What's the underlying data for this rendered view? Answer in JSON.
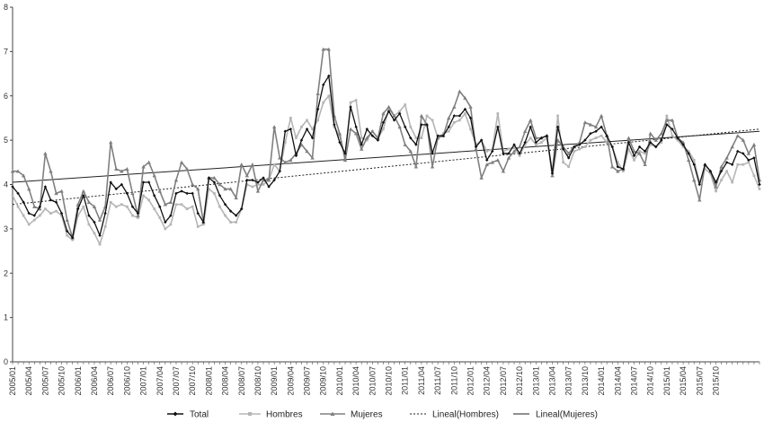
{
  "chart_data": {
    "type": "line",
    "title": "",
    "xlabel": "",
    "ylabel": "",
    "ylim": [
      0,
      8
    ],
    "yticks": [
      "0",
      "1",
      "2",
      "3",
      "4",
      "5",
      "6",
      "7",
      "8"
    ],
    "x_tick_labels": [
      "2005/01",
      "2005/04",
      "2005/07",
      "2005/10",
      "2006/01",
      "2006/04",
      "2006/07",
      "2006/10",
      "2007/01",
      "2007/04",
      "2007/07",
      "2007/10",
      "2008/01",
      "2008/04",
      "2008/07",
      "2008/10",
      "2009/01",
      "2009/04",
      "2009/07",
      "2009/10",
      "2010/01",
      "2010/04",
      "2010/07",
      "2010/10",
      "2011/01",
      "2011/04",
      "2011/07",
      "2011/10",
      "2012/01",
      "2012/04",
      "2012/07",
      "2012/10",
      "2013/01",
      "2013/04",
      "2013/07",
      "2013/10",
      "2014/01",
      "2014/04",
      "2014/07",
      "2014/10",
      "2015/01",
      "2015/04",
      "2015/07",
      "2015/10"
    ],
    "grid": false,
    "legend_position": "bottom",
    "series": [
      {
        "name": "Total",
        "color": "#111111",
        "marker": "diamond",
        "values": [
          3.95,
          3.8,
          3.6,
          3.35,
          3.3,
          3.5,
          3.95,
          3.65,
          3.6,
          3.35,
          2.95,
          2.8,
          3.45,
          3.75,
          3.3,
          3.15,
          2.85,
          3.35,
          4.05,
          3.9,
          4.0,
          3.8,
          3.5,
          3.35,
          4.05,
          4.05,
          3.75,
          3.5,
          3.15,
          3.3,
          3.8,
          3.85,
          3.8,
          3.8,
          3.35,
          3.15,
          4.15,
          4.05,
          3.75,
          3.55,
          3.4,
          3.3,
          3.45,
          4.1,
          4.1,
          4.05,
          4.15,
          3.95,
          4.1,
          4.3,
          5.2,
          5.25,
          4.65,
          5.0,
          5.25,
          5.05,
          5.7,
          6.25,
          6.45,
          5.35,
          4.95,
          4.7,
          5.75,
          5.3,
          4.9,
          5.25,
          5.1,
          5.0,
          5.4,
          5.65,
          5.45,
          5.6,
          5.3,
          5.05,
          4.9,
          5.35,
          5.35,
          4.7,
          5.1,
          5.1,
          5.3,
          5.55,
          5.55,
          5.7,
          5.5,
          4.85,
          5.0,
          4.55,
          4.75,
          5.3,
          4.7,
          4.7,
          4.9,
          4.7,
          4.95,
          5.3,
          4.95,
          5.05,
          5.1,
          4.25,
          5.3,
          4.8,
          4.6,
          4.85,
          4.9,
          5.0,
          5.15,
          5.2,
          5.3,
          5.1,
          4.85,
          4.4,
          4.35,
          4.95,
          4.65,
          4.85,
          4.75,
          4.95,
          4.85,
          5.0,
          5.35,
          5.25,
          5.05,
          4.9,
          4.7,
          4.45,
          4.0,
          4.45,
          4.3,
          4.05,
          4.3,
          4.5,
          4.45,
          4.75,
          4.7,
          4.55,
          4.6,
          4.0
        ]
      },
      {
        "name": "Hombres",
        "color": "#b5b5b5",
        "marker": "square",
        "values": [
          3.75,
          3.5,
          3.3,
          3.1,
          3.2,
          3.3,
          3.45,
          3.35,
          3.4,
          3.3,
          2.85,
          2.75,
          3.3,
          3.5,
          3.1,
          2.9,
          2.65,
          3.05,
          3.6,
          3.5,
          3.55,
          3.5,
          3.3,
          3.25,
          3.75,
          3.65,
          3.45,
          3.25,
          3.0,
          3.1,
          3.55,
          3.55,
          3.45,
          3.5,
          3.05,
          3.1,
          3.9,
          3.8,
          3.5,
          3.3,
          3.15,
          3.15,
          3.45,
          4.0,
          3.95,
          4.0,
          4.0,
          4.1,
          4.45,
          4.3,
          4.95,
          5.5,
          5.05,
          5.3,
          5.45,
          5.25,
          5.45,
          5.85,
          6.0,
          5.3,
          5.1,
          4.6,
          5.85,
          5.9,
          5.05,
          5.0,
          5.2,
          5.05,
          5.25,
          5.7,
          5.55,
          5.65,
          5.8,
          5.3,
          5.05,
          5.05,
          5.55,
          5.45,
          5.05,
          5.15,
          5.2,
          5.4,
          5.45,
          5.6,
          5.25,
          4.9,
          5.0,
          4.75,
          4.8,
          5.6,
          4.75,
          4.8,
          4.85,
          4.65,
          4.9,
          5.05,
          4.9,
          4.95,
          5.05,
          4.3,
          5.55,
          4.5,
          4.4,
          4.75,
          4.8,
          4.85,
          5.0,
          5.05,
          5.1,
          4.95,
          4.85,
          4.5,
          4.3,
          4.8,
          4.55,
          4.75,
          4.7,
          4.9,
          4.85,
          4.95,
          5.55,
          5.1,
          5.0,
          4.85,
          4.75,
          4.55,
          4.05,
          4.35,
          4.25,
          3.85,
          4.1,
          4.3,
          4.05,
          4.45,
          4.45,
          4.5,
          4.2,
          3.9
        ]
      },
      {
        "name": "Mujeres",
        "color": "#808080",
        "marker": "triangle",
        "values": [
          4.3,
          4.3,
          4.2,
          3.9,
          3.5,
          3.45,
          4.7,
          4.3,
          3.8,
          3.85,
          3.2,
          2.8,
          3.55,
          3.85,
          3.6,
          3.5,
          3.2,
          3.5,
          4.95,
          4.35,
          4.3,
          4.35,
          3.8,
          3.3,
          4.4,
          4.5,
          4.2,
          3.85,
          3.55,
          3.6,
          4.1,
          4.5,
          4.35,
          4.0,
          3.9,
          3.15,
          4.15,
          4.15,
          4.0,
          3.9,
          3.9,
          3.7,
          4.45,
          4.2,
          4.45,
          3.85,
          4.1,
          4.1,
          5.3,
          4.6,
          4.5,
          4.55,
          4.7,
          4.9,
          4.75,
          4.6,
          6.05,
          7.05,
          7.05,
          5.55,
          5.15,
          4.55,
          5.25,
          5.15,
          4.8,
          5.05,
          5.2,
          5.05,
          5.6,
          5.75,
          5.55,
          5.3,
          4.9,
          4.75,
          4.4,
          5.55,
          5.35,
          4.4,
          5.05,
          5.1,
          5.5,
          5.75,
          6.1,
          5.95,
          5.75,
          4.8,
          4.15,
          4.45,
          4.5,
          4.55,
          4.3,
          4.6,
          4.75,
          4.85,
          5.2,
          5.45,
          5.05,
          5.05,
          5.1,
          4.2,
          5.0,
          4.85,
          4.7,
          4.85,
          4.95,
          5.4,
          5.35,
          5.3,
          5.55,
          5.1,
          4.4,
          4.3,
          4.35,
          5.05,
          4.75,
          4.7,
          4.45,
          5.15,
          5.0,
          5.15,
          5.45,
          5.45,
          5.05,
          4.95,
          4.55,
          4.1,
          3.65,
          4.45,
          4.3,
          3.95,
          4.4,
          4.6,
          4.85,
          5.1,
          5.0,
          4.7,
          4.9,
          4.1
        ]
      },
      {
        "name": "Lineal(Hombres)",
        "color": "#222222",
        "style": "dotted",
        "values": [
          3.55,
          5.25
        ]
      },
      {
        "name": "Lineal(Mujeres)",
        "color": "#222222",
        "style": "solid",
        "values": [
          4.05,
          5.2
        ]
      }
    ]
  }
}
